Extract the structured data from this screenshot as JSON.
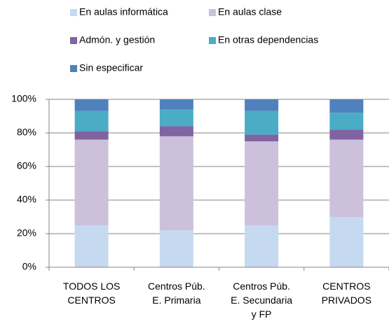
{
  "chart_data": {
    "type": "stacked_bar",
    "categories": [
      "TODOS LOS CENTROS",
      "Centros Púb. E. Primaria",
      "Centros Púb. E. Secundaria y FP",
      "CENTROS PRIVADOS"
    ],
    "series": [
      {
        "name": "En aulas informática",
        "color": "#c5d9f1",
        "values": [
          25,
          22,
          25,
          30
        ]
      },
      {
        "name": "En aulas clase",
        "color": "#ccc0da",
        "values": [
          51,
          56,
          50,
          46
        ]
      },
      {
        "name": "Admón. y gestión",
        "color": "#8064a2",
        "values": [
          5,
          6,
          4,
          6
        ]
      },
      {
        "name": "En otras dependencias",
        "color": "#4bacc6",
        "values": [
          12,
          10,
          14,
          10
        ]
      },
      {
        "name": "Sin especificar",
        "color": "#4f81bd",
        "values": [
          7,
          6,
          7,
          8
        ]
      }
    ],
    "ylim": [
      0,
      100
    ],
    "yticks": [
      {
        "value": 0,
        "label": "0%"
      },
      {
        "value": 20,
        "label": "20%"
      },
      {
        "value": 40,
        "label": "40%"
      },
      {
        "value": 60,
        "label": "60%"
      },
      {
        "value": 80,
        "label": "80%"
      },
      {
        "value": 100,
        "label": "100%"
      }
    ],
    "grid": true,
    "legend": "top"
  }
}
